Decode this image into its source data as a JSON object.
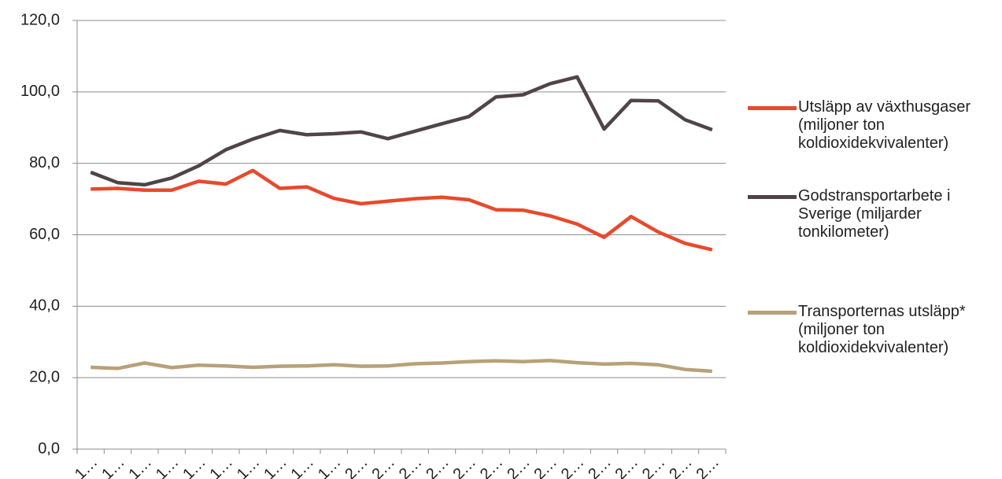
{
  "chart_data": {
    "type": "line",
    "categories": [
      "1…",
      "1…",
      "1…",
      "1…",
      "1…",
      "1…",
      "1…",
      "1…",
      "1…",
      "1…",
      "2…",
      "2…",
      "2…",
      "2…",
      "2…",
      "2…",
      "2…",
      "2…",
      "2…",
      "2…",
      "2…",
      "2…",
      "2…",
      "2…"
    ],
    "series": [
      {
        "name": "Utsläpp av växthusgaser (miljoner ton koldioxidekvivalenter)",
        "color": "#e8492c",
        "values": [
          72.8,
          73.0,
          72.5,
          72.5,
          75.0,
          74.2,
          78.0,
          73.0,
          73.4,
          70.2,
          68.7,
          69.4,
          70.1,
          70.5,
          69.8,
          67.0,
          66.9,
          65.3,
          63.0,
          59.3,
          65.1,
          60.8,
          57.6,
          55.8
        ]
      },
      {
        "name": "Godstransportarbete i Sverige (miljarder tonkilometer)",
        "color": "#504448",
        "values": [
          77.5,
          74.6,
          74.0,
          75.9,
          79.3,
          83.8,
          86.8,
          89.2,
          88.0,
          88.3,
          88.8,
          86.9,
          89.0,
          91.1,
          93.1,
          98.6,
          99.2,
          102.3,
          104.2,
          89.6,
          97.6,
          97.5,
          92.2,
          89.4
        ]
      },
      {
        "name": "Transporternas utsläpp* (miljoner ton koldioxidekvivalenter)",
        "color": "#b7a178",
        "values": [
          22.9,
          22.6,
          24.1,
          22.8,
          23.5,
          23.3,
          22.9,
          23.2,
          23.3,
          23.6,
          23.2,
          23.3,
          23.9,
          24.1,
          24.5,
          24.7,
          24.5,
          24.8,
          24.2,
          23.8,
          24.0,
          23.6,
          22.3,
          21.8
        ]
      }
    ],
    "ylim": [
      0,
      120
    ],
    "yticks": [
      {
        "value": 0,
        "label": "0,0"
      },
      {
        "value": 20,
        "label": "20,0"
      },
      {
        "value": 40,
        "label": "40,0"
      },
      {
        "value": 60,
        "label": "60,0"
      },
      {
        "value": 80,
        "label": "80,0"
      },
      {
        "value": 100,
        "label": "100,0"
      },
      {
        "value": 120,
        "label": "120,0"
      }
    ],
    "grid": true,
    "legend": "right"
  }
}
